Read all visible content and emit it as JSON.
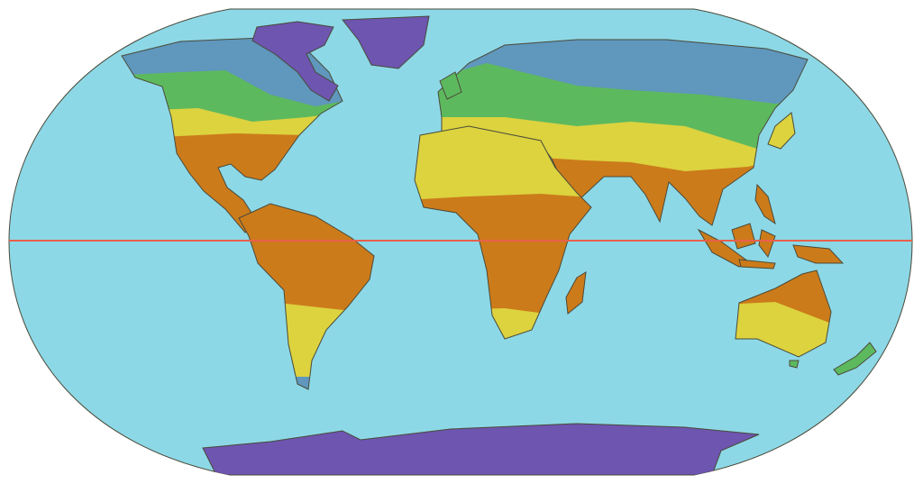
{
  "map": {
    "projection": "robinson",
    "equator_shown": true,
    "colors": {
      "ocean": "#8dd8e6",
      "polar": "#6d55b0",
      "cold": "#5f97bd",
      "temperate": "#5db95e",
      "subtropical": "#dcd33f",
      "tropical": "#cc7b1a",
      "equator_line": "#e8604c",
      "coastline": "#4a4a3a"
    }
  }
}
